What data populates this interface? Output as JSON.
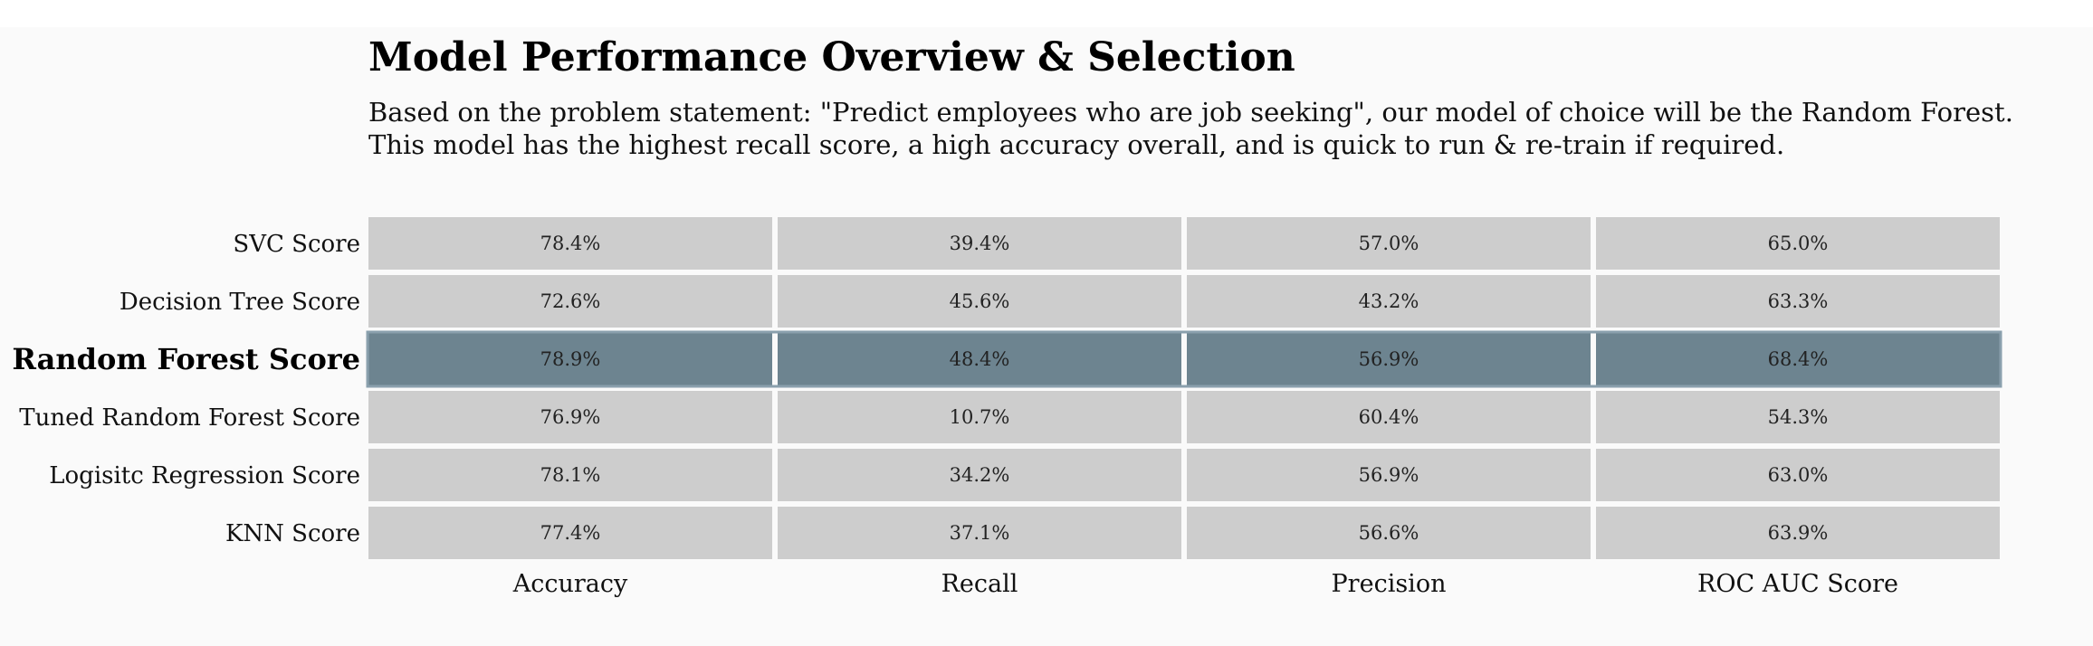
{
  "header": {
    "title": "Model Performance Overview & Selection",
    "subtitle_lines": [
      "Based on the problem statement: \"Predict employees who are job seeking\", our model of choice will be the Random Forest.",
      "This model has the highest recall score, a high accuracy overall, and is quick to run & re-train if required."
    ]
  },
  "colors": {
    "cell": "#cdcdcd",
    "highlight": "#6d8490",
    "background": "#fafafa"
  },
  "chart_data": {
    "type": "heatmap",
    "title": "Model Performance Overview & Selection",
    "rows": [
      "SVC Score",
      "Decision Tree Score",
      "Random Forest Score",
      "Tuned Random Forest Score",
      "Logisitc Regression Score",
      "KNN Score"
    ],
    "columns": [
      "Accuracy",
      "Recall",
      "Precision",
      "ROC AUC Score"
    ],
    "values": [
      [
        78.4,
        39.4,
        57.0,
        65.0
      ],
      [
        72.6,
        45.6,
        43.2,
        63.3
      ],
      [
        78.9,
        48.4,
        56.9,
        68.4
      ],
      [
        76.9,
        10.7,
        60.4,
        54.3
      ],
      [
        78.1,
        34.2,
        56.9,
        63.0
      ],
      [
        77.4,
        37.1,
        56.6,
        63.9
      ]
    ],
    "value_format": "percent_1dp",
    "highlighted_row": "Random Forest Score",
    "legend": "none",
    "grid": false
  }
}
